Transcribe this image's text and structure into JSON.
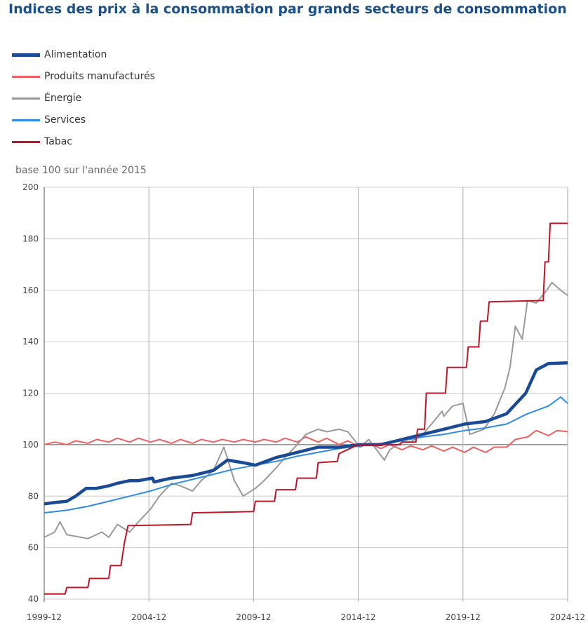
{
  "title": "Indices des prix à la consommation par grands secteurs de consommation",
  "chart_data": {
    "type": "line",
    "title": "Indices des prix à la consommation par grands secteurs de consommation",
    "ylabel": "base 100 sur l'année 2015",
    "xlabel": "",
    "ylim": [
      40,
      200
    ],
    "xlim": [
      "1999-12",
      "2024-12"
    ],
    "yticks": [
      "40",
      "60",
      "80",
      "100",
      "120",
      "140",
      "160",
      "180",
      "200"
    ],
    "xticks": [
      "1999-12",
      "2004-12",
      "2009-12",
      "2014-12",
      "2019-12",
      "2024-12"
    ],
    "grid": true,
    "legend_position": "top-left",
    "series": [
      {
        "name": "Alimentation",
        "color": "#1a4a96",
        "points": [
          [
            "1999-12",
            77
          ],
          [
            "2000-06",
            77.5
          ],
          [
            "2001-01",
            78
          ],
          [
            "2001-06",
            80
          ],
          [
            "2001-12",
            83
          ],
          [
            "2002-06",
            83
          ],
          [
            "2003-01",
            84
          ],
          [
            "2003-06",
            85
          ],
          [
            "2004-01",
            86
          ],
          [
            "2004-06",
            86
          ],
          [
            "2005-02",
            87
          ],
          [
            "2005-03",
            85.5
          ],
          [
            "2006-01",
            87
          ],
          [
            "2007-01",
            88
          ],
          [
            "2008-01",
            90
          ],
          [
            "2008-09",
            94
          ],
          [
            "2009-06",
            93
          ],
          [
            "2010-01",
            92
          ],
          [
            "2011-01",
            95
          ],
          [
            "2012-01",
            97
          ],
          [
            "2013-01",
            99
          ],
          [
            "2014-01",
            99
          ],
          [
            "2015-01",
            100
          ],
          [
            "2016-01",
            100
          ],
          [
            "2017-01",
            102
          ],
          [
            "2018-01",
            104
          ],
          [
            "2019-01",
            106
          ],
          [
            "2020-01",
            108
          ],
          [
            "2021-01",
            109
          ],
          [
            "2022-01",
            112
          ],
          [
            "2022-12",
            120
          ],
          [
            "2023-06",
            129
          ],
          [
            "2024-01",
            131.5
          ],
          [
            "2024-12",
            131.8
          ]
        ]
      },
      {
        "name": "Produits manufacturés",
        "color": "#f06060",
        "points": [
          [
            "1999-12",
            100
          ],
          [
            "2000-06",
            101
          ],
          [
            "2001-01",
            100
          ],
          [
            "2001-06",
            101.5
          ],
          [
            "2002-01",
            100.5
          ],
          [
            "2002-06",
            102
          ],
          [
            "2003-01",
            101
          ],
          [
            "2003-06",
            102.5
          ],
          [
            "2004-01",
            101
          ],
          [
            "2004-06",
            102.5
          ],
          [
            "2005-01",
            101
          ],
          [
            "2005-06",
            102
          ],
          [
            "2006-01",
            100.5
          ],
          [
            "2006-06",
            102
          ],
          [
            "2007-01",
            100.5
          ],
          [
            "2007-06",
            102
          ],
          [
            "2008-01",
            101
          ],
          [
            "2008-06",
            102
          ],
          [
            "2009-01",
            101
          ],
          [
            "2009-06",
            102
          ],
          [
            "2010-01",
            101
          ],
          [
            "2010-06",
            102
          ],
          [
            "2011-01",
            101
          ],
          [
            "2011-06",
            102.5
          ],
          [
            "2012-01",
            101
          ],
          [
            "2012-06",
            103
          ],
          [
            "2013-01",
            101
          ],
          [
            "2013-06",
            102.5
          ],
          [
            "2014-01",
            100
          ],
          [
            "2014-06",
            101.5
          ],
          [
            "2015-01",
            99
          ],
          [
            "2015-06",
            100.5
          ],
          [
            "2016-01",
            98.5
          ],
          [
            "2016-06",
            100
          ],
          [
            "2017-01",
            98
          ],
          [
            "2017-06",
            99.5
          ],
          [
            "2018-01",
            98
          ],
          [
            "2018-06",
            99.5
          ],
          [
            "2019-01",
            97.5
          ],
          [
            "2019-06",
            99
          ],
          [
            "2020-01",
            97
          ],
          [
            "2020-06",
            99
          ],
          [
            "2021-01",
            97
          ],
          [
            "2021-06",
            99
          ],
          [
            "2022-01",
            99
          ],
          [
            "2022-06",
            102
          ],
          [
            "2023-01",
            103
          ],
          [
            "2023-06",
            105.5
          ],
          [
            "2024-01",
            103.5
          ],
          [
            "2024-06",
            105.5
          ],
          [
            "2024-12",
            105
          ]
        ]
      },
      {
        "name": "Énergie",
        "color": "#999999",
        "points": [
          [
            "1999-12",
            64
          ],
          [
            "2000-06",
            66
          ],
          [
            "2000-09",
            70
          ],
          [
            "2001-01",
            65
          ],
          [
            "2002-01",
            63.5
          ],
          [
            "2002-09",
            66
          ],
          [
            "2003-01",
            64
          ],
          [
            "2003-06",
            69
          ],
          [
            "2004-01",
            66
          ],
          [
            "2004-06",
            70
          ],
          [
            "2005-01",
            75
          ],
          [
            "2005-06",
            80
          ],
          [
            "2006-01",
            85
          ],
          [
            "2006-06",
            84
          ],
          [
            "2007-01",
            82
          ],
          [
            "2007-06",
            86
          ],
          [
            "2008-01",
            90
          ],
          [
            "2008-07",
            99
          ],
          [
            "2009-01",
            86
          ],
          [
            "2009-06",
            80
          ],
          [
            "2010-01",
            83
          ],
          [
            "2010-06",
            86
          ],
          [
            "2011-01",
            91
          ],
          [
            "2011-06",
            95
          ],
          [
            "2012-01",
            100
          ],
          [
            "2012-06",
            104
          ],
          [
            "2013-01",
            106
          ],
          [
            "2013-06",
            105
          ],
          [
            "2014-01",
            106
          ],
          [
            "2014-06",
            105
          ],
          [
            "2015-01",
            99
          ],
          [
            "2015-06",
            102
          ],
          [
            "2016-03",
            94
          ],
          [
            "2016-06",
            98
          ],
          [
            "2017-01",
            101
          ],
          [
            "2017-06",
            101
          ],
          [
            "2018-01",
            104
          ],
          [
            "2018-06",
            108
          ],
          [
            "2018-12",
            113
          ],
          [
            "2019-01",
            111
          ],
          [
            "2019-06",
            115
          ],
          [
            "2019-12",
            116
          ],
          [
            "2020-04",
            104
          ],
          [
            "2020-12",
            106
          ],
          [
            "2021-06",
            112
          ],
          [
            "2021-12",
            122
          ],
          [
            "2022-03",
            130
          ],
          [
            "2022-06",
            146
          ],
          [
            "2022-10",
            141
          ],
          [
            "2023-01",
            156
          ],
          [
            "2023-06",
            155
          ],
          [
            "2023-12",
            160
          ],
          [
            "2024-03",
            163
          ],
          [
            "2024-08",
            160
          ],
          [
            "2024-12",
            158
          ]
        ]
      },
      {
        "name": "Services",
        "color": "#2e8be6",
        "points": [
          [
            "1999-12",
            73.5
          ],
          [
            "2001-01",
            74.5
          ],
          [
            "2002-01",
            76
          ],
          [
            "2003-01",
            78
          ],
          [
            "2004-01",
            80
          ],
          [
            "2005-01",
            82
          ],
          [
            "2006-01",
            84.5
          ],
          [
            "2007-01",
            86.5
          ],
          [
            "2008-01",
            88.5
          ],
          [
            "2009-01",
            90.5
          ],
          [
            "2010-01",
            92
          ],
          [
            "2011-01",
            93.5
          ],
          [
            "2012-01",
            95.5
          ],
          [
            "2013-01",
            97
          ],
          [
            "2014-01",
            98.5
          ],
          [
            "2015-01",
            99.5
          ],
          [
            "2016-01",
            100.5
          ],
          [
            "2017-01",
            101.5
          ],
          [
            "2018-01",
            103
          ],
          [
            "2019-01",
            104
          ],
          [
            "2020-01",
            105.5
          ],
          [
            "2021-01",
            106.5
          ],
          [
            "2022-01",
            108
          ],
          [
            "2023-01",
            112
          ],
          [
            "2024-01",
            115
          ],
          [
            "2024-08",
            118.5
          ],
          [
            "2024-12",
            116
          ]
        ]
      },
      {
        "name": "Tabac",
        "color": "#c0142a",
        "points": [
          [
            "1999-12",
            42
          ],
          [
            "2000-12",
            42
          ],
          [
            "2001-01",
            44.5
          ],
          [
            "2002-01",
            44.5
          ],
          [
            "2002-02",
            48
          ],
          [
            "2003-01",
            48
          ],
          [
            "2003-02",
            53
          ],
          [
            "2003-08",
            53
          ],
          [
            "2003-10",
            62
          ],
          [
            "2003-12",
            68.5
          ],
          [
            "2006-12",
            69
          ],
          [
            "2007-01",
            73.5
          ],
          [
            "2009-12",
            74
          ],
          [
            "2010-01",
            78
          ],
          [
            "2010-12",
            78
          ],
          [
            "2011-01",
            82.5
          ],
          [
            "2011-12",
            82.5
          ],
          [
            "2012-01",
            87
          ],
          [
            "2012-12",
            87
          ],
          [
            "2013-01",
            93
          ],
          [
            "2013-12",
            93.5
          ],
          [
            "2014-01",
            96.5
          ],
          [
            "2014-12",
            100
          ],
          [
            "2016-12",
            100
          ],
          [
            "2017-01",
            101
          ],
          [
            "2017-09",
            101
          ],
          [
            "2017-10",
            106
          ],
          [
            "2018-02",
            106
          ],
          [
            "2018-03",
            120
          ],
          [
            "2019-02",
            120
          ],
          [
            "2019-03",
            130
          ],
          [
            "2020-02",
            130
          ],
          [
            "2020-03",
            138
          ],
          [
            "2020-09",
            138
          ],
          [
            "2020-10",
            148
          ],
          [
            "2021-02",
            148
          ],
          [
            "2021-03",
            155.5
          ],
          [
            "2023-10",
            156
          ],
          [
            "2023-11",
            171
          ],
          [
            "2024-01",
            171
          ],
          [
            "2024-02",
            186
          ],
          [
            "2024-12",
            186
          ]
        ]
      }
    ]
  }
}
